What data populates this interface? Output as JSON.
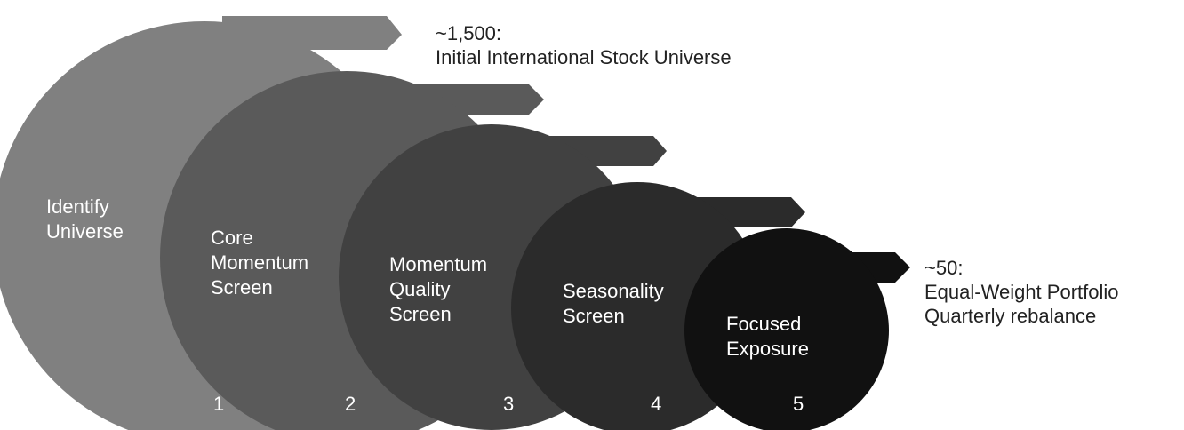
{
  "stages": [
    {
      "number": "1",
      "label_lines": [
        "Identify",
        "Universe"
      ],
      "color": "#808080"
    },
    {
      "number": "2",
      "label_lines": [
        "Core",
        "Momentum",
        "Screen"
      ],
      "color": "#5a5a5a"
    },
    {
      "number": "3",
      "label_lines": [
        "Momentum",
        "Quality",
        "Screen"
      ],
      "color": "#414141"
    },
    {
      "number": "4",
      "label_lines": [
        "Seasonality",
        "Screen"
      ],
      "color": "#2b2b2b"
    },
    {
      "number": "5",
      "label_lines": [
        "Focused",
        "Exposure"
      ],
      "color": "#111111"
    }
  ],
  "callouts": {
    "top": {
      "line1": "~1,500:",
      "line2": "Initial International Stock Universe"
    },
    "right": {
      "line1": "~50:",
      "line2": "Equal-Weight Portfolio",
      "line3": "Quarterly rebalance"
    }
  }
}
